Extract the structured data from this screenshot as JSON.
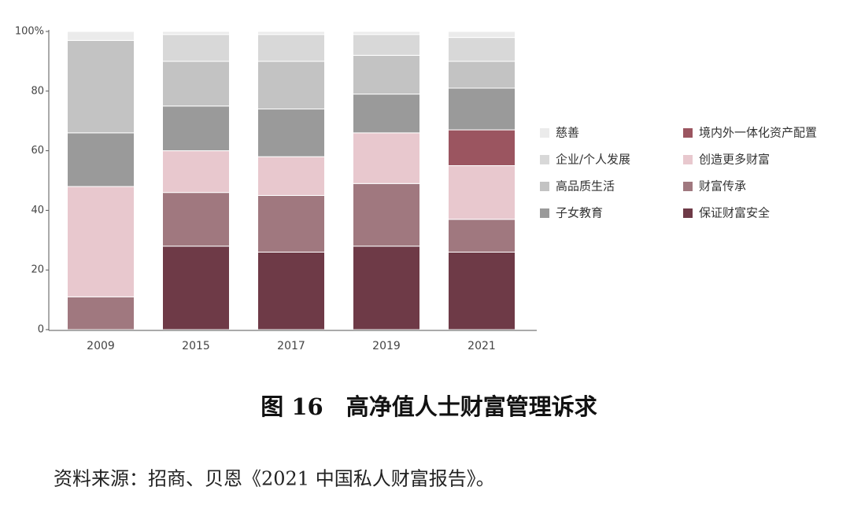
{
  "chart_data": {
    "type": "stacked_bar",
    "title": "图 16　高净值人士财富管理诉求",
    "source": "资料来源：招商、贝恩《2021 中国私人财富报告》。",
    "categories": [
      "2009",
      "2015",
      "2017",
      "2019",
      "2021"
    ],
    "series": [
      {
        "name": "保证财富安全",
        "color": "#6e3a47",
        "values": [
          0,
          28,
          26,
          28,
          26
        ]
      },
      {
        "name": "财富传承",
        "color": "#a0787f",
        "values": [
          11,
          18,
          19,
          21,
          11
        ]
      },
      {
        "name": "创造更多财富",
        "color": "#e8c8ce",
        "values": [
          37,
          14,
          13,
          17,
          18
        ]
      },
      {
        "name": "境内外一体化资产配置",
        "color": "#9b5560",
        "values": [
          0,
          0,
          0,
          0,
          12
        ]
      },
      {
        "name": "子女教育",
        "color": "#9a9a9a",
        "values": [
          18,
          15,
          16,
          13,
          14
        ]
      },
      {
        "name": "高品质生活",
        "color": "#c3c3c3",
        "values": [
          31,
          15,
          16,
          13,
          9
        ]
      },
      {
        "name": "企业/个人发展",
        "color": "#d8d8d8",
        "values": [
          0,
          9,
          9,
          7,
          8
        ]
      },
      {
        "name": "慈善",
        "color": "#ebebeb",
        "values": [
          3,
          1,
          1,
          1,
          2
        ]
      }
    ],
    "ylim": [
      0,
      100
    ],
    "yticks": [
      0,
      20,
      40,
      60,
      80,
      {
        "value": 100,
        "label": "100%"
      }
    ]
  }
}
